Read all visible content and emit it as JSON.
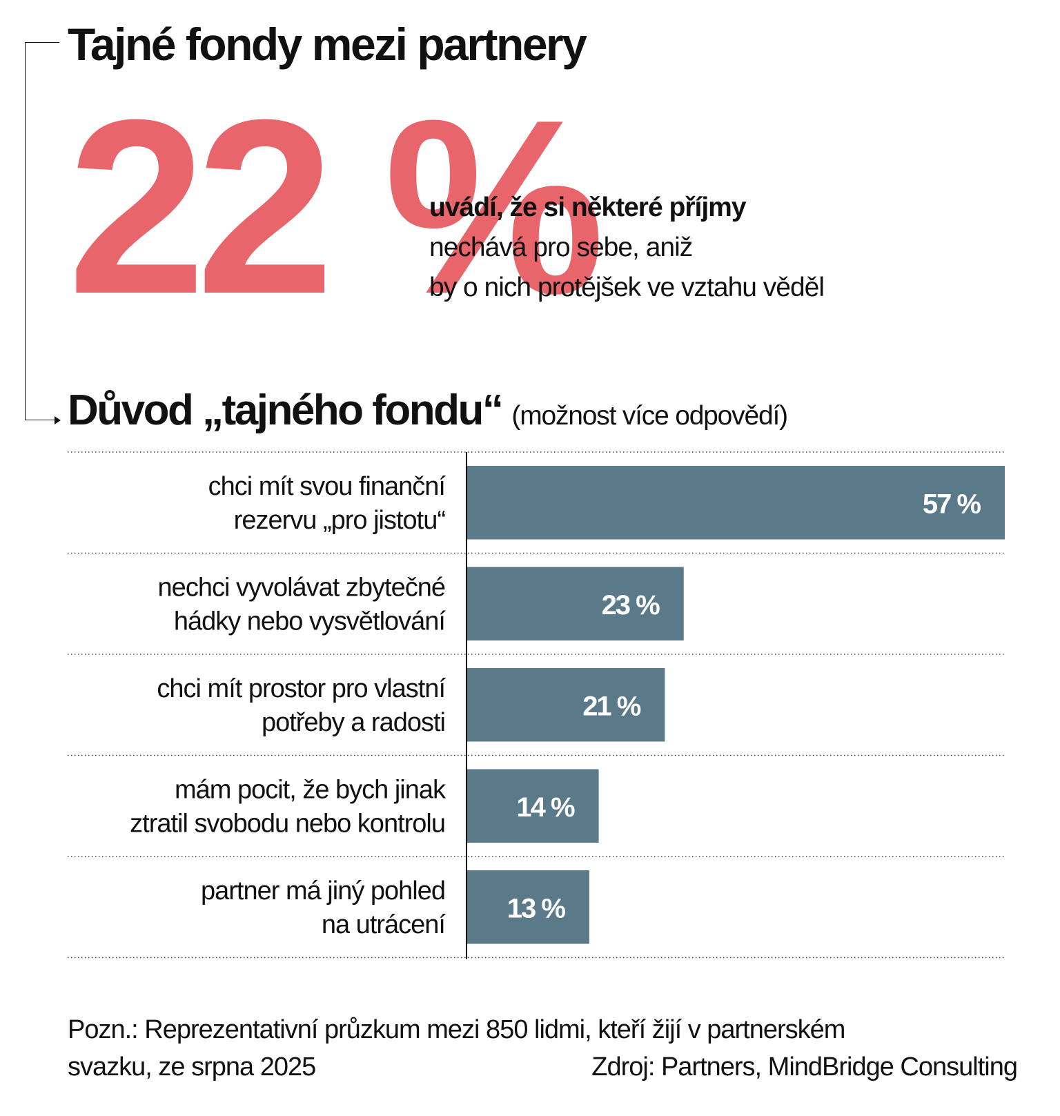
{
  "header": {
    "title": "Tajné fondy mezi partnery"
  },
  "highlight": {
    "value": "22 %",
    "desc_bold": "uvádí, že si některé příjmy",
    "desc_line2": "nechává pro sebe, aniž",
    "desc_line3": "by o nich protějšek ve vztahu věděl"
  },
  "section": {
    "title": "Důvod „tajného fondu“",
    "note": "(možnost více odpovědí)"
  },
  "chart_data": {
    "type": "bar",
    "orientation": "horizontal",
    "categories": [
      [
        "chci mít svou finanční",
        "rezervu „pro jistotu“"
      ],
      [
        "nechci vyvolávat zbytečné",
        "hádky nebo vysvětlování"
      ],
      [
        "chci mít prostor pro vlastní",
        "potřeby a radosti"
      ],
      [
        "mám pocit, že bych jinak",
        "ztratil svobodu nebo kontrolu"
      ],
      [
        "partner má jiný pohled",
        "na utrácení"
      ]
    ],
    "values": [
      57,
      23,
      21,
      14,
      13
    ],
    "value_labels": [
      "57 %",
      "23 %",
      "21 %",
      "14 %",
      "13 %"
    ],
    "xlim": [
      0,
      57
    ],
    "bar_color": "#5a7a8a",
    "grid": "dotted row separators"
  },
  "footer": {
    "note_line1": "Pozn.: Reprezentativní průzkum mezi 850 lidmi, kteří žijí v partnerském",
    "note_line2": "svazku, ze srpna 2025",
    "source": "Zdroj: Partners, MindBridge Consulting"
  },
  "colors": {
    "accent": "#e8666b",
    "bar": "#5a7a8a",
    "text": "#111111"
  }
}
